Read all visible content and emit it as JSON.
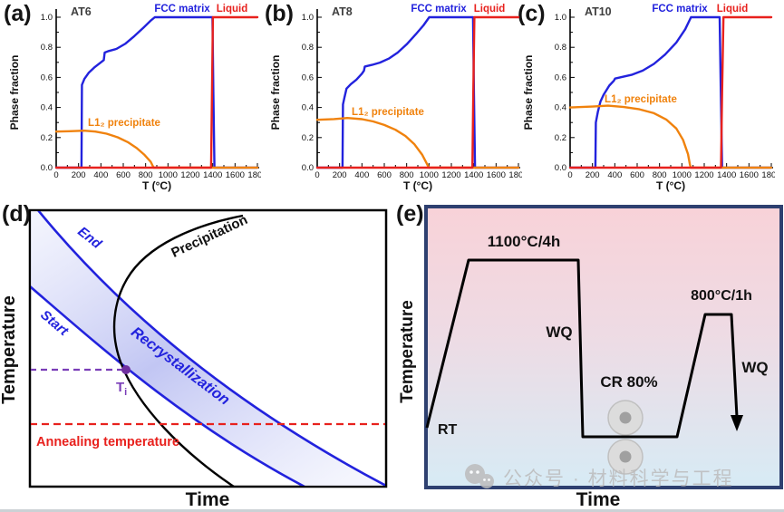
{
  "colors": {
    "curve_blue": "#2222dd",
    "orange": "#f0820d",
    "red": "#e8211d",
    "purple": "#7a3db8",
    "purple_dot": "#7030a0",
    "navy_border": "#2e4070",
    "band_light": "#eceefc",
    "band_mid": "#b7bcf1",
    "black": "#111111",
    "watermark_gray": "#bcbcbc"
  },
  "panel_labels": {
    "a": "(a)",
    "b": "(b)",
    "c": "(c)",
    "d": "(d)",
    "e": "(e)"
  },
  "chart_data": [
    {
      "type": "line",
      "sample_label": "AT6",
      "xlabel": "T (°C)",
      "ylabel": "Phase fraction",
      "xlim": [
        0,
        1800
      ],
      "ylim": [
        0,
        1.05
      ],
      "xticks": [
        0,
        200,
        400,
        600,
        800,
        1000,
        1200,
        1400,
        1600,
        1800
      ],
      "xtick_labels": [
        "0",
        "200",
        "400",
        "600",
        "800",
        "1000",
        "1200",
        "1400",
        "1600",
        "1800"
      ],
      "yticks": [
        0,
        0.2,
        0.4,
        0.6,
        0.8,
        1.0
      ],
      "ytick_labels": [
        "0.0",
        "0.2",
        "0.4",
        "0.6",
        "0.8",
        "1.0"
      ],
      "grid": false,
      "series": [
        {
          "name": "FCC matrix",
          "color": "#2222dd",
          "points": [
            [
              0,
              0
            ],
            [
              226,
              0
            ],
            [
              230,
              0.55
            ],
            [
              252,
              0.59
            ],
            [
              290,
              0.63
            ],
            [
              340,
              0.665
            ],
            [
              400,
              0.7
            ],
            [
              426,
              0.715
            ],
            [
              434,
              0.765
            ],
            [
              470,
              0.775
            ],
            [
              540,
              0.79
            ],
            [
              620,
              0.825
            ],
            [
              700,
              0.875
            ],
            [
              780,
              0.93
            ],
            [
              850,
              0.98
            ],
            [
              882,
              1.0
            ],
            [
              1398,
              1.0
            ],
            [
              1406,
              0.5
            ],
            [
              1416,
              0
            ],
            [
              1800,
              0
            ]
          ]
        },
        {
          "name": "L1₂ precipitate",
          "color": "#f0820d",
          "points": [
            [
              0,
              0.24
            ],
            [
              120,
              0.242
            ],
            [
              250,
              0.246
            ],
            [
              350,
              0.24
            ],
            [
              450,
              0.226
            ],
            [
              550,
              0.202
            ],
            [
              640,
              0.17
            ],
            [
              720,
              0.13
            ],
            [
              790,
              0.085
            ],
            [
              845,
              0.04
            ],
            [
              872,
              0
            ],
            [
              1800,
              0
            ]
          ]
        },
        {
          "name": "Liquid",
          "color": "#e8211d",
          "points": [
            [
              0,
              0
            ],
            [
              1386,
              0
            ],
            [
              1394,
              0.5
            ],
            [
              1402,
              1.0
            ],
            [
              1800,
              1.0
            ]
          ]
        }
      ]
    },
    {
      "type": "line",
      "sample_label": "AT8",
      "xlabel": "T (°C)",
      "ylabel": "Phase fraction",
      "xlim": [
        0,
        1800
      ],
      "ylim": [
        0,
        1.05
      ],
      "xticks": [
        0,
        200,
        400,
        600,
        800,
        1000,
        1200,
        1400,
        1600,
        1800
      ],
      "xtick_labels": [
        "0",
        "200",
        "400",
        "600",
        "800",
        "1000",
        "1200",
        "1400",
        "1600",
        "1800"
      ],
      "yticks": [
        0,
        0.2,
        0.4,
        0.6,
        0.8,
        1.0
      ],
      "ytick_labels": [
        "0.0",
        "0.2",
        "0.4",
        "0.6",
        "0.8",
        "1.0"
      ],
      "grid": false,
      "series": [
        {
          "name": "FCC matrix",
          "color": "#2222dd",
          "points": [
            [
              0,
              0
            ],
            [
              226,
              0
            ],
            [
              230,
              0.42
            ],
            [
              243,
              0.465
            ],
            [
              262,
              0.525
            ],
            [
              300,
              0.555
            ],
            [
              350,
              0.585
            ],
            [
              400,
              0.625
            ],
            [
              418,
              0.645
            ],
            [
              426,
              0.672
            ],
            [
              490,
              0.683
            ],
            [
              560,
              0.698
            ],
            [
              640,
              0.725
            ],
            [
              720,
              0.765
            ],
            [
              800,
              0.82
            ],
            [
              880,
              0.885
            ],
            [
              950,
              0.946
            ],
            [
              1002,
              1.0
            ],
            [
              1394,
              1.0
            ],
            [
              1402,
              0.5
            ],
            [
              1412,
              0
            ],
            [
              1800,
              0
            ]
          ]
        },
        {
          "name": "L1₂ precipitate",
          "color": "#f0820d",
          "points": [
            [
              0,
              0.318
            ],
            [
              150,
              0.323
            ],
            [
              270,
              0.33
            ],
            [
              400,
              0.322
            ],
            [
              500,
              0.307
            ],
            [
              600,
              0.284
            ],
            [
              700,
              0.252
            ],
            [
              790,
              0.21
            ],
            [
              870,
              0.155
            ],
            [
              940,
              0.085
            ],
            [
              985,
              0.02
            ],
            [
              998,
              0
            ],
            [
              1800,
              0
            ]
          ]
        },
        {
          "name": "Liquid",
          "color": "#e8211d",
          "points": [
            [
              0,
              0
            ],
            [
              1388,
              0
            ],
            [
              1396,
              0.5
            ],
            [
              1406,
              1.0
            ],
            [
              1800,
              1.0
            ]
          ]
        }
      ]
    },
    {
      "type": "line",
      "sample_label": "AT10",
      "xlabel": "T (°C)",
      "ylabel": "Phase fraction",
      "xlim": [
        0,
        1800
      ],
      "ylim": [
        0,
        1.05
      ],
      "xticks": [
        0,
        200,
        400,
        600,
        800,
        1000,
        1200,
        1400,
        1600,
        1800
      ],
      "xtick_labels": [
        "0",
        "200",
        "400",
        "600",
        "800",
        "1000",
        "1200",
        "1400",
        "1600",
        "1800"
      ],
      "yticks": [
        0,
        0.2,
        0.4,
        0.6,
        0.8,
        1.0
      ],
      "ytick_labels": [
        "0.0",
        "0.2",
        "0.4",
        "0.6",
        "0.8",
        "1.0"
      ],
      "grid": false,
      "series": [
        {
          "name": "FCC matrix",
          "color": "#2222dd",
          "points": [
            [
              0,
              0
            ],
            [
              226,
              0
            ],
            [
              230,
              0.3
            ],
            [
              248,
              0.37
            ],
            [
              272,
              0.44
            ],
            [
              300,
              0.485
            ],
            [
              350,
              0.545
            ],
            [
              392,
              0.578
            ],
            [
              402,
              0.592
            ],
            [
              460,
              0.602
            ],
            [
              550,
              0.617
            ],
            [
              650,
              0.645
            ],
            [
              750,
              0.69
            ],
            [
              850,
              0.752
            ],
            [
              950,
              0.832
            ],
            [
              1030,
              0.92
            ],
            [
              1082,
              1.0
            ],
            [
              1338,
              1.0
            ],
            [
              1348,
              0.5
            ],
            [
              1360,
              0
            ],
            [
              1800,
              0
            ]
          ]
        },
        {
          "name": "L1₂ precipitate",
          "color": "#f0820d",
          "points": [
            [
              0,
              0.4
            ],
            [
              200,
              0.406
            ],
            [
              340,
              0.412
            ],
            [
              480,
              0.403
            ],
            [
              620,
              0.388
            ],
            [
              750,
              0.362
            ],
            [
              860,
              0.32
            ],
            [
              950,
              0.26
            ],
            [
              1010,
              0.185
            ],
            [
              1055,
              0.09
            ],
            [
              1072,
              0.02
            ],
            [
              1080,
              0
            ],
            [
              1800,
              0
            ]
          ]
        },
        {
          "name": "Liquid",
          "color": "#e8211d",
          "points": [
            [
              0,
              0
            ],
            [
              1350,
              0
            ],
            [
              1360,
              0.5
            ],
            [
              1372,
              1.0
            ],
            [
              1800,
              1.0
            ]
          ]
        }
      ]
    }
  ],
  "panel_d": {
    "end_label": "End",
    "start_label": "Start",
    "recrystallization_label": "Recrystallization",
    "precipitation_label": "Precipitation",
    "ti_label": "T",
    "ti_sub": "i",
    "annealing_label": "Annealing temperature",
    "xlabel": "Time",
    "ylabel": "Temperature"
  },
  "panel_e": {
    "solution_label": "1100°C/4h",
    "wq1_label": "WQ",
    "cr_label": "CR 80%",
    "aging_label": "800°C/1h",
    "wq2_label": "WQ",
    "rt_label": "RT",
    "xlabel": "Time",
    "ylabel": "Temperature"
  },
  "watermark": {
    "icon_name": "wechat-logo",
    "text": "公众号 · 材料科学与工程"
  }
}
